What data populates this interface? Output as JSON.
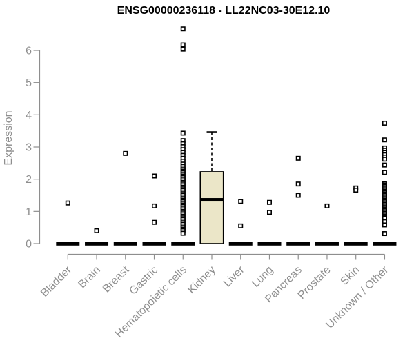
{
  "colors": {
    "background": "#FFFFFF",
    "axis": "#8E8E8E",
    "mark": "#000000",
    "box_fill": "#EBE6C8",
    "point_fill": "#FFFFFF",
    "title": "#000000"
  },
  "chart_data": {
    "type": "boxplot",
    "title": "ENSG00000236118 - LL22NC03-30E12.10",
    "ylabel": "Expression",
    "xlabel": "",
    "yticks": [
      0,
      1,
      2,
      3,
      4,
      5,
      6
    ],
    "ylim": [
      0,
      6.9
    ],
    "grid": "off",
    "legend": "none",
    "x_label_rotation_deg": 45,
    "categories": [
      "Bladder",
      "Brain",
      "Breast",
      "Gastric",
      "Hematopoietic cells",
      "Kidney",
      "Liver",
      "Lung",
      "Pancreas",
      "Prostate",
      "Skin",
      "Unknown / Other"
    ],
    "groups": [
      {
        "category": "Bladder",
        "box": {
          "q1": 0,
          "median": 0,
          "q3": 0,
          "whisker_low": 0,
          "whisker_high": 0
        },
        "points": [
          1.26
        ]
      },
      {
        "category": "Brain",
        "box": {
          "q1": 0,
          "median": 0,
          "q3": 0,
          "whisker_low": 0,
          "whisker_high": 0
        },
        "points": [
          0.4
        ]
      },
      {
        "category": "Breast",
        "box": {
          "q1": 0,
          "median": 0,
          "q3": 0,
          "whisker_low": 0,
          "whisker_high": 0
        },
        "points": [
          2.8
        ]
      },
      {
        "category": "Gastric",
        "box": {
          "q1": 0,
          "median": 0,
          "q3": 0,
          "whisker_low": 0,
          "whisker_high": 0
        },
        "points": [
          2.1,
          1.17,
          0.66
        ]
      },
      {
        "category": "Hematopoietic cells",
        "box": {
          "q1": 0,
          "median": 0,
          "q3": 0,
          "whisker_low": 0,
          "whisker_high": 0
        },
        "points": [
          6.67,
          6.17,
          6.04,
          3.43,
          3.2,
          3.1,
          3.01,
          2.92,
          2.83,
          2.74,
          2.65,
          2.56,
          2.47,
          2.4,
          2.35,
          2.3,
          2.25,
          2.2,
          2.15,
          2.1,
          2.05,
          2.0,
          1.95,
          1.9,
          1.85,
          1.8,
          1.75,
          1.7,
          1.65,
          1.6,
          1.55,
          1.5,
          1.45,
          1.4,
          1.35,
          1.3,
          1.25,
          1.2,
          1.15,
          1.1,
          1.05,
          1.0,
          0.95,
          0.9,
          0.85,
          0.8,
          0.75,
          0.7,
          0.65,
          0.6,
          0.55,
          0.5,
          0.45,
          0.4,
          0.32
        ]
      },
      {
        "category": "Kidney",
        "box": {
          "q1": 0,
          "median": 1.36,
          "q3": 2.23,
          "whisker_low": 0,
          "whisker_high": 3.46
        },
        "points": []
      },
      {
        "category": "Liver",
        "box": {
          "q1": 0,
          "median": 0,
          "q3": 0,
          "whisker_low": 0,
          "whisker_high": 0
        },
        "points": [
          1.31,
          0.55
        ]
      },
      {
        "category": "Lung",
        "box": {
          "q1": 0,
          "median": 0,
          "q3": 0,
          "whisker_low": 0,
          "whisker_high": 0
        },
        "points": [
          1.28,
          0.97
        ]
      },
      {
        "category": "Pancreas",
        "box": {
          "q1": 0,
          "median": 0,
          "q3": 0,
          "whisker_low": 0,
          "whisker_high": 0
        },
        "points": [
          2.65,
          1.85,
          1.5
        ]
      },
      {
        "category": "Prostate",
        "box": {
          "q1": 0,
          "median": 0,
          "q3": 0,
          "whisker_low": 0,
          "whisker_high": 0
        },
        "points": [
          1.17
        ]
      },
      {
        "category": "Skin",
        "box": {
          "q1": 0,
          "median": 0,
          "q3": 0,
          "whisker_low": 0,
          "whisker_high": 0
        },
        "points": [
          1.73,
          1.66
        ]
      },
      {
        "category": "Unknown / Other",
        "box": {
          "q1": 0,
          "median": 0,
          "q3": 0,
          "whisker_low": 0,
          "whisker_high": 0
        },
        "points": [
          3.74,
          3.22,
          2.97,
          2.9,
          2.83,
          2.76,
          2.69,
          2.62,
          2.44,
          2.21,
          1.86,
          1.82,
          1.78,
          1.74,
          1.7,
          1.66,
          1.62,
          1.58,
          1.54,
          1.5,
          1.46,
          1.42,
          1.38,
          1.34,
          1.3,
          1.26,
          1.22,
          1.18,
          1.14,
          1.1,
          1.06,
          1.02,
          0.98,
          0.94,
          0.9,
          0.86,
          0.82,
          0.79,
          0.68,
          0.58,
          0.31
        ]
      }
    ]
  }
}
